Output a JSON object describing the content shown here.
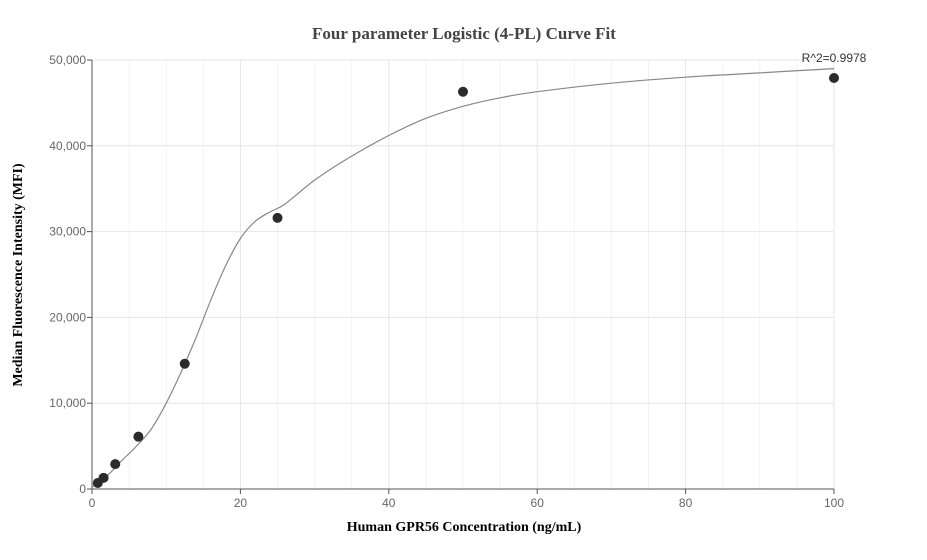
{
  "chart_data": {
    "type": "scatter",
    "title": "Four parameter Logistic (4-PL) Curve Fit",
    "xlabel": "Human GPR56 Concentration (ng/mL)",
    "ylabel": "Median Fluorescence Intensity (MFI)",
    "xlim": [
      0,
      100
    ],
    "ylim": [
      0,
      50000
    ],
    "x_ticks": [
      0,
      20,
      40,
      60,
      80,
      100
    ],
    "y_ticks": [
      0,
      10000,
      20000,
      30000,
      40000,
      50000
    ],
    "x_tick_labels": [
      "0",
      "20",
      "40",
      "60",
      "80",
      "100"
    ],
    "y_tick_labels": [
      "0",
      "10,000",
      "20,000",
      "30,000",
      "40,000",
      "50,000"
    ],
    "grid": true,
    "annotation": "R^2=0.9978",
    "points": [
      {
        "x": 0.78,
        "y": 700
      },
      {
        "x": 1.56,
        "y": 1300
      },
      {
        "x": 3.13,
        "y": 2900
      },
      {
        "x": 6.25,
        "y": 6100
      },
      {
        "x": 12.5,
        "y": 14600
      },
      {
        "x": 25,
        "y": 31600
      },
      {
        "x": 50,
        "y": 46300
      },
      {
        "x": 100,
        "y": 47900
      }
    ],
    "fit_curve": {
      "x": [
        0,
        2,
        4,
        6,
        8,
        10,
        12,
        14,
        16,
        18,
        20,
        22,
        24,
        26,
        30,
        35,
        40,
        45,
        50,
        55,
        60,
        70,
        80,
        90,
        100
      ],
      "y": [
        200,
        1500,
        3300,
        5000,
        7000,
        10000,
        13600,
        17600,
        22000,
        26000,
        29200,
        31200,
        32300,
        33200,
        36000,
        38800,
        41200,
        43200,
        44600,
        45600,
        46300,
        47300,
        48000,
        48500,
        49000
      ]
    },
    "colors": {
      "point": "#2b2b2b",
      "curve": "#888888",
      "grid": "#e6e6e6",
      "minor_grid": "#f3f3f3",
      "axis": "#555555"
    }
  }
}
